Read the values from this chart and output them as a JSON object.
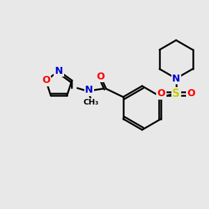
{
  "bg_color": "#e8e8e8",
  "bond_color": "#000000",
  "bond_width": 1.8,
  "atom_colors": {
    "N": "#0000cc",
    "O": "#ff0000",
    "S": "#cccc00",
    "C": "#000000"
  },
  "font_size_atom": 10,
  "font_size_methyl": 8
}
